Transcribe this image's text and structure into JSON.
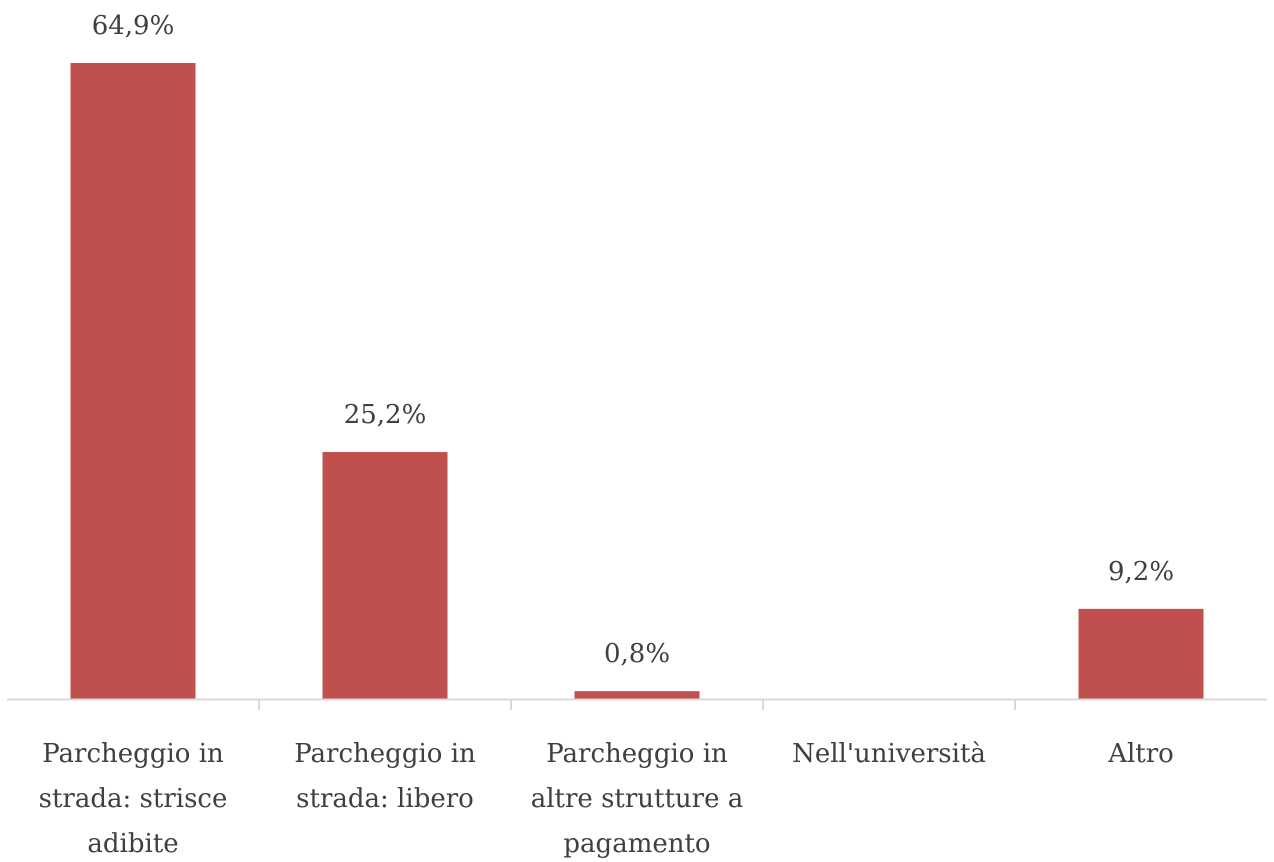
{
  "chart_data": {
    "type": "bar",
    "categories": [
      [
        "Parcheggio in",
        "strada: strisce",
        "adibite"
      ],
      [
        "Parcheggio in",
        "strada:  libero"
      ],
      [
        "Parcheggio in",
        "altre strutture a",
        "pagamento"
      ],
      [
        "Nell'università"
      ],
      [
        "Altro"
      ]
    ],
    "values": [
      64.9,
      25.2,
      0.8,
      null,
      9.2
    ],
    "value_labels": [
      "64,9%",
      "25,2%",
      "0,8%",
      "",
      "9,2%"
    ],
    "title": "",
    "xlabel": "",
    "ylabel": "",
    "ylim": [
      0,
      64.9
    ],
    "grid": false,
    "legend": "none",
    "bar_color": "#c0504d",
    "axis_color": "#d9d9d9",
    "text_color": "#404040"
  }
}
